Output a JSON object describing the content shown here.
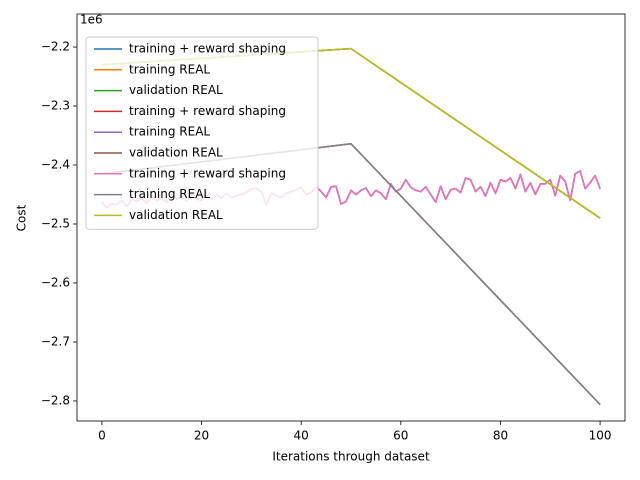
{
  "chart_data": {
    "type": "line",
    "x_label": "Iterations through dataset",
    "y_label": "Cost",
    "y_offset_label": "1e6",
    "xlim": [
      -5,
      105
    ],
    "ylim": [
      -2.834,
      -2.144
    ],
    "xticks": [
      0,
      20,
      40,
      60,
      80,
      100
    ],
    "yticks": [
      {
        "value": -2.2,
        "label": "−2.2"
      },
      {
        "value": -2.3,
        "label": "−2.3"
      },
      {
        "value": -2.4,
        "label": "−2.4"
      },
      {
        "value": -2.5,
        "label": "−2.5"
      },
      {
        "value": -2.6,
        "label": "−2.6"
      },
      {
        "value": -2.7,
        "label": "−2.7"
      },
      {
        "value": -2.8,
        "label": "−2.8"
      }
    ],
    "legend": "upper left",
    "grid": false,
    "series": [
      {
        "name": "training + reward shaping",
        "color": "#1f77b4",
        "x": [
          0,
          1,
          2,
          3,
          4,
          5,
          6,
          7,
          8,
          9,
          10,
          11,
          12,
          13,
          14,
          15,
          16,
          17,
          18,
          19,
          20,
          21,
          22,
          23,
          24,
          25,
          26,
          27,
          28,
          29,
          30,
          31,
          32,
          33,
          34,
          35,
          36,
          37,
          38,
          39,
          40,
          41,
          42,
          43,
          44,
          45,
          46,
          47,
          48,
          49,
          50,
          51,
          52,
          53,
          54,
          55,
          56,
          57,
          58,
          59,
          60,
          61,
          62,
          63,
          64,
          65,
          66,
          67,
          68,
          69,
          70,
          71,
          72,
          73,
          74,
          75,
          76,
          77,
          78,
          79,
          80,
          81,
          82,
          83,
          84,
          85,
          86,
          87,
          88,
          89,
          90,
          91,
          92,
          93,
          94,
          95,
          96,
          97,
          98,
          99,
          100
        ],
        "values": [
          -2.463,
          -2.472,
          -2.466,
          -2.467,
          -2.46,
          -2.47,
          -2.458,
          -2.462,
          -2.455,
          -2.465,
          -2.452,
          -2.46,
          -2.456,
          -2.463,
          -2.45,
          -2.458,
          -2.454,
          -2.461,
          -2.449,
          -2.457,
          -2.46,
          -2.452,
          -2.458,
          -2.45,
          -2.456,
          -2.448,
          -2.455,
          -2.452,
          -2.45,
          -2.447,
          -2.44,
          -2.44,
          -2.445,
          -2.468,
          -2.448,
          -2.452,
          -2.455,
          -2.448,
          -2.445,
          -2.442,
          -2.438,
          -2.45,
          -2.447,
          -2.437,
          -2.445,
          -2.455,
          -2.437,
          -2.436,
          -2.466,
          -2.462,
          -2.443,
          -2.45,
          -2.443,
          -2.439,
          -2.453,
          -2.443,
          -2.448,
          -2.458,
          -2.432,
          -2.445,
          -2.44,
          -2.425,
          -2.438,
          -2.443,
          -2.445,
          -2.437,
          -2.45,
          -2.463,
          -2.436,
          -2.458,
          -2.442,
          -2.44,
          -2.447,
          -2.422,
          -2.425,
          -2.445,
          -2.437,
          -2.453,
          -2.43,
          -2.448,
          -2.425,
          -2.428,
          -2.422,
          -2.44,
          -2.416,
          -2.445,
          -2.43,
          -2.45,
          -2.432,
          -2.432,
          -2.425,
          -2.452,
          -2.418,
          -2.428,
          -2.46,
          -2.415,
          -2.41,
          -2.44,
          -2.43,
          -2.418,
          -2.44
        ]
      },
      {
        "name": "training REAL",
        "color": "#ff7f0e",
        "x": [
          0,
          50,
          100
        ],
        "values": [
          -2.415,
          -2.364,
          -2.806
        ]
      },
      {
        "name": "validation REAL",
        "color": "#2ca02c",
        "x": [
          0,
          50,
          100
        ],
        "values": [
          -2.23,
          -2.2028,
          -2.49
        ]
      },
      {
        "name": "training + reward shaping",
        "color": "#d62728",
        "x": [
          0,
          1,
          2,
          3,
          4,
          5,
          6,
          7,
          8,
          9,
          10,
          11,
          12,
          13,
          14,
          15,
          16,
          17,
          18,
          19,
          20,
          21,
          22,
          23,
          24,
          25,
          26,
          27,
          28,
          29,
          30,
          31,
          32,
          33,
          34,
          35,
          36,
          37,
          38,
          39,
          40,
          41,
          42,
          43,
          44,
          45,
          46,
          47,
          48,
          49,
          50,
          51,
          52,
          53,
          54,
          55,
          56,
          57,
          58,
          59,
          60,
          61,
          62,
          63,
          64,
          65,
          66,
          67,
          68,
          69,
          70,
          71,
          72,
          73,
          74,
          75,
          76,
          77,
          78,
          79,
          80,
          81,
          82,
          83,
          84,
          85,
          86,
          87,
          88,
          89,
          90,
          91,
          92,
          93,
          94,
          95,
          96,
          97,
          98,
          99,
          100
        ],
        "values": [
          -2.463,
          -2.472,
          -2.466,
          -2.467,
          -2.46,
          -2.47,
          -2.458,
          -2.462,
          -2.455,
          -2.465,
          -2.452,
          -2.46,
          -2.456,
          -2.463,
          -2.45,
          -2.458,
          -2.454,
          -2.461,
          -2.449,
          -2.457,
          -2.46,
          -2.452,
          -2.458,
          -2.45,
          -2.456,
          -2.448,
          -2.455,
          -2.452,
          -2.45,
          -2.447,
          -2.44,
          -2.44,
          -2.445,
          -2.468,
          -2.448,
          -2.452,
          -2.455,
          -2.448,
          -2.445,
          -2.442,
          -2.438,
          -2.45,
          -2.447,
          -2.437,
          -2.445,
          -2.455,
          -2.437,
          -2.436,
          -2.466,
          -2.462,
          -2.443,
          -2.45,
          -2.443,
          -2.439,
          -2.453,
          -2.443,
          -2.448,
          -2.458,
          -2.432,
          -2.445,
          -2.44,
          -2.425,
          -2.438,
          -2.443,
          -2.445,
          -2.437,
          -2.45,
          -2.463,
          -2.436,
          -2.458,
          -2.442,
          -2.44,
          -2.447,
          -2.422,
          -2.425,
          -2.445,
          -2.437,
          -2.453,
          -2.43,
          -2.448,
          -2.425,
          -2.428,
          -2.422,
          -2.44,
          -2.416,
          -2.445,
          -2.43,
          -2.45,
          -2.432,
          -2.432,
          -2.425,
          -2.452,
          -2.418,
          -2.428,
          -2.46,
          -2.415,
          -2.41,
          -2.44,
          -2.43,
          -2.418,
          -2.44
        ]
      },
      {
        "name": "training REAL",
        "color": "#9467bd",
        "x": [
          0,
          50,
          100
        ],
        "values": [
          -2.415,
          -2.364,
          -2.806
        ]
      },
      {
        "name": "validation REAL",
        "color": "#8c564b",
        "x": [
          0,
          50,
          100
        ],
        "values": [
          -2.23,
          -2.2028,
          -2.49
        ]
      },
      {
        "name": "training + reward shaping",
        "color": "#e377c2",
        "x": [
          0,
          1,
          2,
          3,
          4,
          5,
          6,
          7,
          8,
          9,
          10,
          11,
          12,
          13,
          14,
          15,
          16,
          17,
          18,
          19,
          20,
          21,
          22,
          23,
          24,
          25,
          26,
          27,
          28,
          29,
          30,
          31,
          32,
          33,
          34,
          35,
          36,
          37,
          38,
          39,
          40,
          41,
          42,
          43,
          44,
          45,
          46,
          47,
          48,
          49,
          50,
          51,
          52,
          53,
          54,
          55,
          56,
          57,
          58,
          59,
          60,
          61,
          62,
          63,
          64,
          65,
          66,
          67,
          68,
          69,
          70,
          71,
          72,
          73,
          74,
          75,
          76,
          77,
          78,
          79,
          80,
          81,
          82,
          83,
          84,
          85,
          86,
          87,
          88,
          89,
          90,
          91,
          92,
          93,
          94,
          95,
          96,
          97,
          98,
          99,
          100
        ],
        "values": [
          -2.463,
          -2.472,
          -2.466,
          -2.467,
          -2.46,
          -2.47,
          -2.458,
          -2.462,
          -2.455,
          -2.465,
          -2.452,
          -2.46,
          -2.456,
          -2.463,
          -2.45,
          -2.458,
          -2.454,
          -2.461,
          -2.449,
          -2.457,
          -2.46,
          -2.452,
          -2.458,
          -2.45,
          -2.456,
          -2.448,
          -2.455,
          -2.452,
          -2.45,
          -2.447,
          -2.44,
          -2.44,
          -2.445,
          -2.468,
          -2.448,
          -2.452,
          -2.455,
          -2.448,
          -2.445,
          -2.442,
          -2.438,
          -2.45,
          -2.447,
          -2.437,
          -2.445,
          -2.455,
          -2.437,
          -2.436,
          -2.466,
          -2.462,
          -2.443,
          -2.45,
          -2.443,
          -2.439,
          -2.453,
          -2.443,
          -2.448,
          -2.458,
          -2.432,
          -2.445,
          -2.44,
          -2.425,
          -2.438,
          -2.443,
          -2.445,
          -2.437,
          -2.45,
          -2.463,
          -2.436,
          -2.458,
          -2.442,
          -2.44,
          -2.447,
          -2.422,
          -2.425,
          -2.445,
          -2.437,
          -2.453,
          -2.43,
          -2.448,
          -2.425,
          -2.428,
          -2.422,
          -2.44,
          -2.416,
          -2.445,
          -2.43,
          -2.45,
          -2.432,
          -2.432,
          -2.425,
          -2.452,
          -2.418,
          -2.428,
          -2.46,
          -2.415,
          -2.41,
          -2.44,
          -2.43,
          -2.418,
          -2.44
        ]
      },
      {
        "name": "training REAL",
        "color": "#7f7f7f",
        "x": [
          0,
          50,
          100
        ],
        "values": [
          -2.415,
          -2.364,
          -2.806
        ]
      },
      {
        "name": "validation REAL",
        "color": "#bcbd22",
        "x": [
          0,
          50,
          100
        ],
        "values": [
          -2.23,
          -2.2028,
          -2.49
        ]
      }
    ]
  }
}
